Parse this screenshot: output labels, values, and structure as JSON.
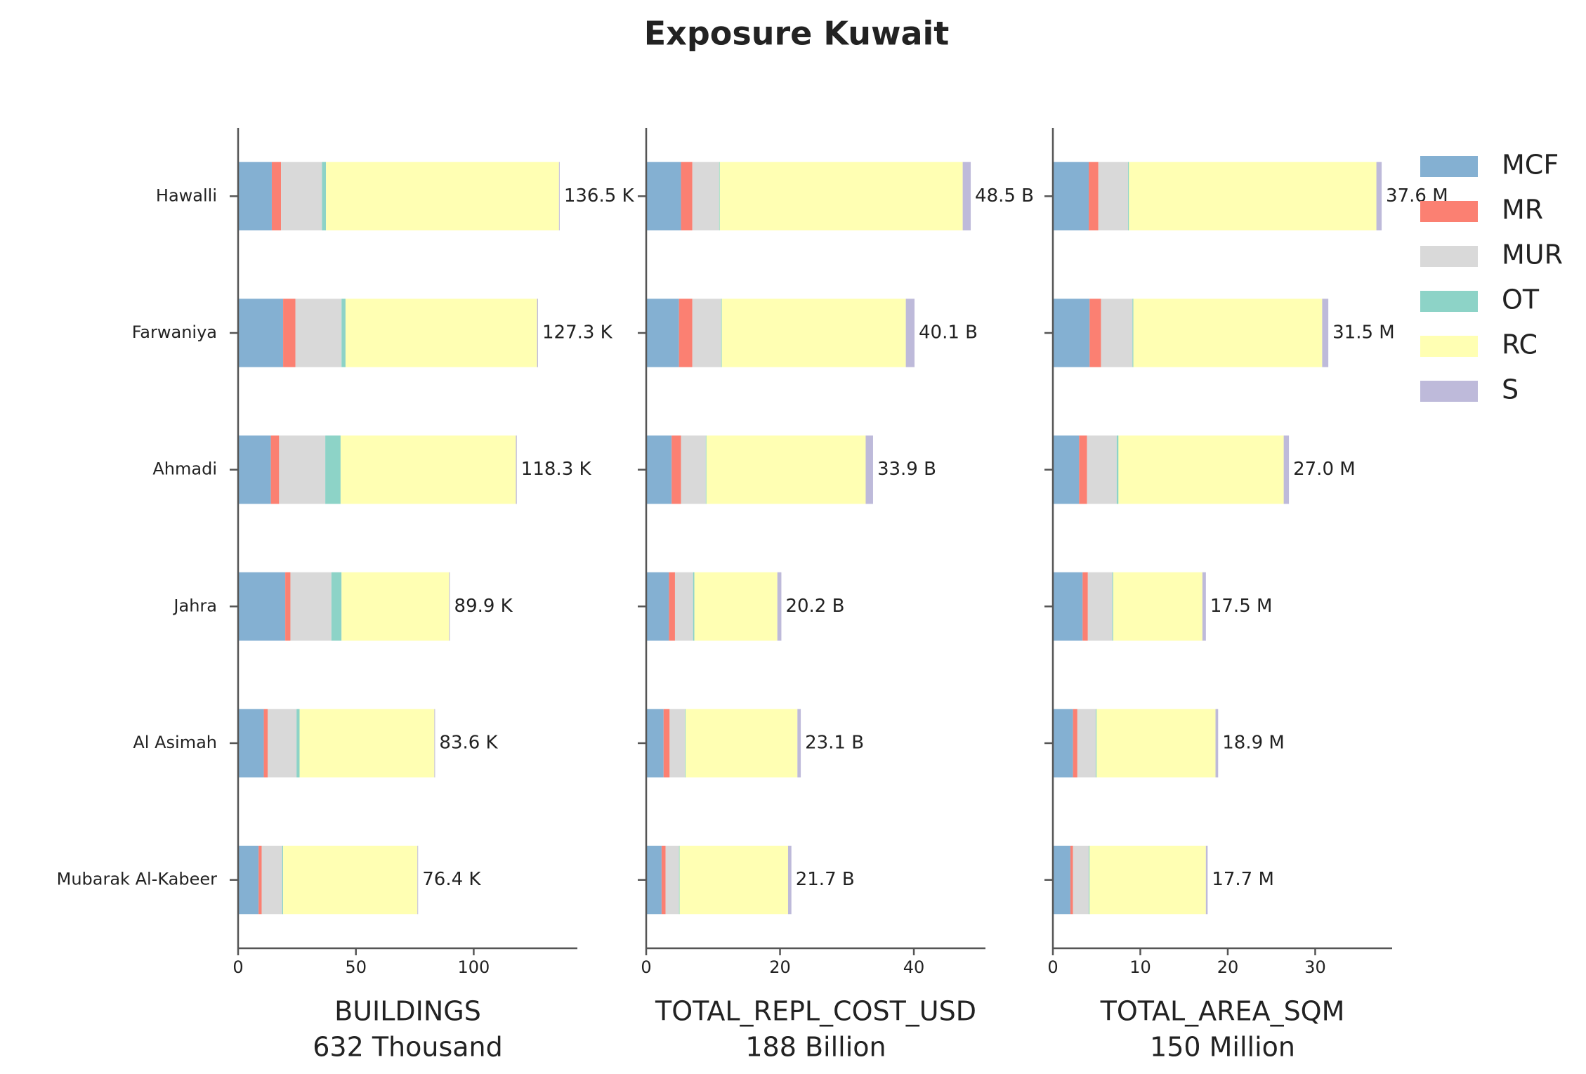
{
  "title": "Exposure Kuwait",
  "chart_data": [
    {
      "type": "bar",
      "orientation": "horizontal",
      "xlabel": "BUILDINGS",
      "xlabel_total": "632 Thousand",
      "categories": [
        "Hawalli",
        "Farwaniya",
        "Ahmadi",
        "Jahra",
        "Al Asimah",
        "Mubarak Al-Kabeer"
      ],
      "xlim": [
        0,
        144
      ],
      "xticks": [
        0,
        50,
        100
      ],
      "series": [
        {
          "name": "MCF",
          "color": "#84b0d2",
          "values": [
            14.3,
            19.1,
            13.9,
            20.0,
            10.9,
            8.7
          ]
        },
        {
          "name": "MR",
          "color": "#fb8072",
          "values": [
            3.9,
            5.2,
            3.5,
            2.2,
            1.7,
            1.3
          ]
        },
        {
          "name": "MUR",
          "color": "#d9d9d9",
          "values": [
            17.4,
            19.6,
            19.6,
            17.4,
            12.2,
            8.7
          ]
        },
        {
          "name": "OT",
          "color": "#8dd3c7",
          "values": [
            1.7,
            1.7,
            6.5,
            4.3,
            1.3,
            0.4
          ]
        },
        {
          "name": "RC",
          "color": "#ffffb3",
          "values": [
            98.9,
            81.3,
            74.4,
            45.7,
            57.2,
            57.0
          ]
        },
        {
          "name": "S",
          "color": "#bebada",
          "values": [
            0.3,
            0.4,
            0.4,
            0.3,
            0.3,
            0.3
          ]
        }
      ],
      "totals": [
        136.5,
        127.3,
        118.3,
        89.9,
        83.6,
        76.4
      ],
      "value_labels": [
        "136.5 K",
        "127.3 K",
        "118.3 K",
        "89.9 K",
        "83.6 K",
        "76.4 K"
      ]
    },
    {
      "type": "bar",
      "orientation": "horizontal",
      "xlabel": "TOTAL_REPL_COST_USD",
      "xlabel_total": "188 Billion",
      "xlim": [
        0,
        50.7
      ],
      "xticks": [
        0,
        20,
        40
      ],
      "series": [
        {
          "name": "MCF",
          "color": "#84b0d2",
          "values": [
            5.2,
            4.9,
            3.8,
            3.4,
            2.6,
            2.3
          ]
        },
        {
          "name": "MR",
          "color": "#fb8072",
          "values": [
            1.7,
            2.0,
            1.4,
            0.9,
            0.9,
            0.6
          ]
        },
        {
          "name": "MUR",
          "color": "#d9d9d9",
          "values": [
            4.0,
            4.3,
            3.7,
            2.7,
            2.3,
            2.0
          ]
        },
        {
          "name": "OT",
          "color": "#8dd3c7",
          "values": [
            0.1,
            0.1,
            0.1,
            0.2,
            0.1,
            0.1
          ]
        },
        {
          "name": "RC",
          "color": "#ffffb3",
          "values": [
            36.3,
            27.5,
            23.8,
            12.4,
            16.7,
            16.2
          ]
        },
        {
          "name": "S",
          "color": "#bebada",
          "values": [
            1.2,
            1.3,
            1.1,
            0.6,
            0.5,
            0.5
          ]
        }
      ],
      "totals": [
        48.5,
        40.1,
        33.9,
        20.2,
        23.1,
        21.7
      ],
      "value_labels": [
        "48.5 B",
        "40.1 B",
        "33.9 B",
        "20.2 B",
        "23.1 B",
        "21.7 B"
      ]
    },
    {
      "type": "bar",
      "orientation": "horizontal",
      "xlabel": "TOTAL_AREA_SQM",
      "xlabel_total": "150 Million",
      "xlim": [
        0,
        38.8
      ],
      "xticks": [
        0,
        10,
        20,
        30
      ],
      "series": [
        {
          "name": "MCF",
          "color": "#84b0d2",
          "values": [
            4.1,
            4.2,
            3.0,
            3.4,
            2.3,
            2.0
          ]
        },
        {
          "name": "MR",
          "color": "#fb8072",
          "values": [
            1.1,
            1.3,
            0.9,
            0.6,
            0.5,
            0.3
          ]
        },
        {
          "name": "MUR",
          "color": "#d9d9d9",
          "values": [
            3.4,
            3.6,
            3.4,
            2.8,
            2.1,
            1.8
          ]
        },
        {
          "name": "OT",
          "color": "#8dd3c7",
          "values": [
            0.1,
            0.1,
            0.2,
            0.1,
            0.1,
            0.1
          ]
        },
        {
          "name": "RC",
          "color": "#ffffb3",
          "values": [
            28.3,
            21.6,
            18.9,
            10.2,
            13.6,
            13.3
          ]
        },
        {
          "name": "S",
          "color": "#bebada",
          "values": [
            0.6,
            0.7,
            0.6,
            0.4,
            0.3,
            0.2
          ]
        }
      ],
      "totals": [
        37.6,
        31.5,
        27.0,
        17.5,
        18.9,
        17.7
      ],
      "value_labels": [
        "37.6 M",
        "31.5 M",
        "27.0 M",
        "17.5 M",
        "18.9 M",
        "17.7 M"
      ]
    }
  ]
}
